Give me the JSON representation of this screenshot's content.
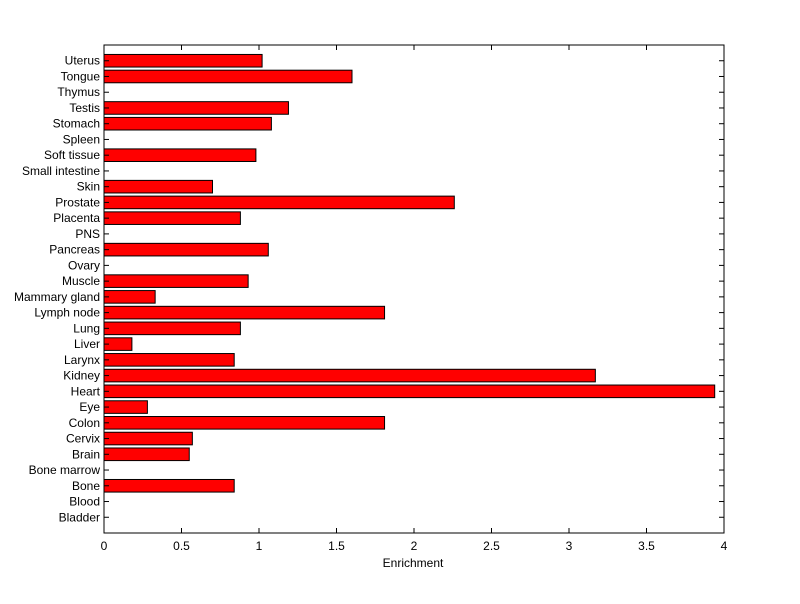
{
  "chart_data": {
    "type": "bar",
    "orientation": "horizontal",
    "xlabel": "Enrichment",
    "ylabel": "",
    "xlim": [
      0,
      4
    ],
    "x_ticks": [
      "0",
      "0.5",
      "1",
      "1.5",
      "2",
      "2.5",
      "3",
      "3.5",
      "4"
    ],
    "grid": false,
    "bar_color": "#ff0000",
    "categories": [
      "Bladder",
      "Blood",
      "Bone",
      "Bone marrow",
      "Brain",
      "Cervix",
      "Colon",
      "Eye",
      "Heart",
      "Kidney",
      "Larynx",
      "Liver",
      "Lung",
      "Lymph node",
      "Mammary gland",
      "Muscle",
      "Ovary",
      "Pancreas",
      "PNS",
      "Placenta",
      "Prostate",
      "Skin",
      "Small intestine",
      "Soft tissue",
      "Spleen",
      "Stomach",
      "Testis",
      "Thymus",
      "Tongue",
      "Uterus"
    ],
    "values": [
      0,
      0,
      0.84,
      0,
      0.55,
      0.57,
      1.81,
      0.28,
      3.94,
      3.17,
      0.84,
      0.18,
      0.88,
      1.81,
      0.33,
      0.93,
      0,
      1.06,
      0,
      0.88,
      2.26,
      0.7,
      0,
      0.98,
      0,
      1.08,
      1.19,
      0,
      1.6,
      1.02
    ]
  }
}
